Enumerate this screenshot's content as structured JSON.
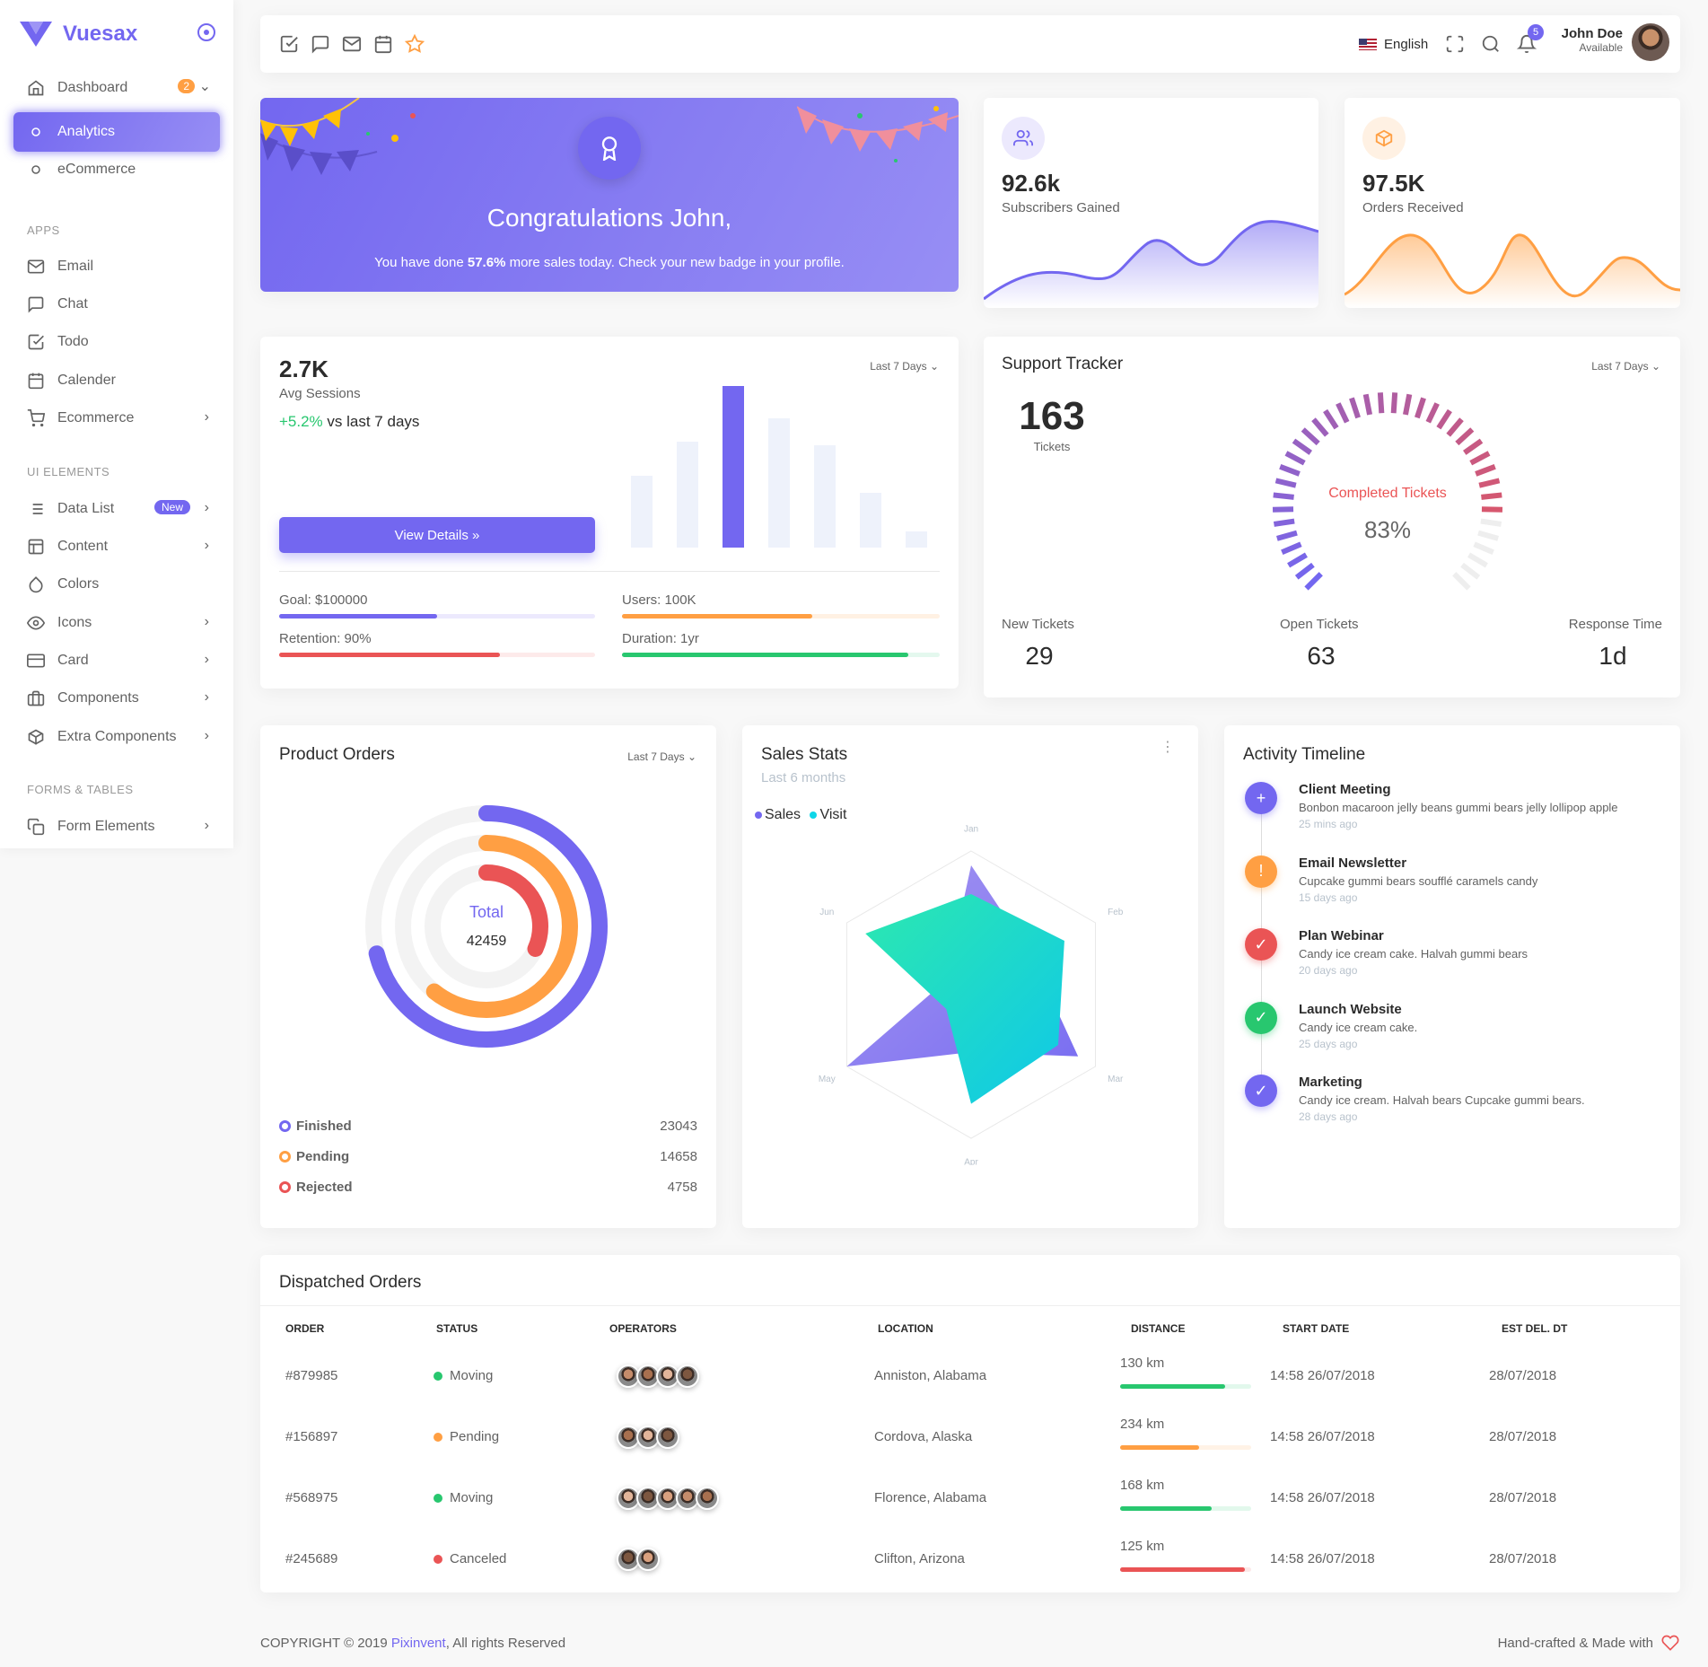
{
  "brand": {
    "name": "Vuesax"
  },
  "sidebar": {
    "dashboard": {
      "label": "Dashboard",
      "badge": "2"
    },
    "sub_items": [
      {
        "label": "Analytics"
      },
      {
        "label": "eCommerce"
      }
    ],
    "sections": {
      "apps": "APPS",
      "ui": "UI ELEMENTS",
      "forms": "FORMS & TABLES"
    },
    "apps": [
      {
        "label": "Email",
        "icon": "mail-icon"
      },
      {
        "label": "Chat",
        "icon": "chat-icon"
      },
      {
        "label": "Todo",
        "icon": "check-square-icon"
      },
      {
        "label": "Calender",
        "icon": "calendar-icon"
      },
      {
        "label": "Ecommerce",
        "icon": "cart-icon"
      }
    ],
    "ui": [
      {
        "label": "Data List",
        "icon": "list-icon",
        "badge": "New"
      },
      {
        "label": "Content",
        "icon": "layout-icon"
      },
      {
        "label": "Colors",
        "icon": "droplet-icon"
      },
      {
        "label": "Icons",
        "icon": "eye-icon"
      },
      {
        "label": "Card",
        "icon": "credit-card-icon"
      },
      {
        "label": "Components",
        "icon": "briefcase-icon"
      },
      {
        "label": "Extra Components",
        "icon": "box-icon"
      }
    ],
    "forms": [
      {
        "label": "Form Elements",
        "icon": "copy-icon"
      }
    ]
  },
  "topbar": {
    "language": "English",
    "notifications": "5",
    "user": {
      "name": "John Doe",
      "status": "Available"
    }
  },
  "congrats": {
    "title": "Congratulations John,",
    "text_before": "You have done ",
    "percent": "57.6%",
    "text_after": " more sales today. Check your new badge in your profile."
  },
  "subscribers": {
    "value": "92.6k",
    "label": "Subscribers Gained",
    "color": "#7367f0"
  },
  "orders_received": {
    "value": "97.5K",
    "label": "Orders Received",
    "color": "#ff9f43"
  },
  "sessions": {
    "value": "2.7K",
    "label": "Avg Sessions",
    "change": "+5.2%",
    "change_suffix": " vs last 7 days",
    "filter": "Last 7 Days",
    "button": "View Details »",
    "goals": [
      {
        "label": "Goal: $100000",
        "pct": 50,
        "color": "#7367f0"
      },
      {
        "label": "Users: 100K",
        "pct": 60,
        "color": "#ff9f43"
      },
      {
        "label": "Retention: 90%",
        "pct": 70,
        "color": "#ea5455"
      },
      {
        "label": "Duration: 1yr",
        "pct": 90,
        "color": "#28c76f"
      }
    ]
  },
  "support": {
    "title": "Support Tracker",
    "filter": "Last 7 Days",
    "tickets": "163",
    "tickets_label": "Tickets",
    "gauge_label": "Completed Tickets",
    "gauge_value": "83%",
    "gauge_pct": 83,
    "stats": [
      {
        "label": "New Tickets",
        "value": "29"
      },
      {
        "label": "Open Tickets",
        "value": "63"
      },
      {
        "label": "Response Time",
        "value": "1d"
      }
    ]
  },
  "product_orders": {
    "title": "Product Orders",
    "filter": "Last 7 Days",
    "total_label": "Total",
    "total": "42459",
    "items": [
      {
        "label": "Finished",
        "value": "23043",
        "color": "#7367f0"
      },
      {
        "label": "Pending",
        "value": "14658",
        "color": "#ff9f43"
      },
      {
        "label": "Rejected",
        "value": "4758",
        "color": "#ea5455"
      }
    ]
  },
  "sales_stats": {
    "title": "Sales Stats",
    "subtitle": "Last 6 months",
    "legend": [
      {
        "label": "Sales",
        "color": "#7367f0"
      },
      {
        "label": "Visit",
        "color": "#0fd6e8"
      }
    ]
  },
  "chart_data": {
    "type": "radar",
    "categories": [
      "Jan",
      "Feb",
      "Mar",
      "Apr",
      "May",
      "Jun"
    ],
    "series": [
      {
        "name": "Sales",
        "values": [
          90,
          50,
          86,
          40,
          100,
          20
        ]
      },
      {
        "name": "Visit",
        "values": [
          70,
          75,
          70,
          76,
          20,
          85
        ]
      }
    ]
  },
  "timeline": {
    "title": "Activity Timeline",
    "items": [
      {
        "title": "Client Meeting",
        "text": "Bonbon macaroon jelly beans gummi bears jelly lollipop apple",
        "time": "25 mins ago",
        "color": "#7367f0",
        "icon": "+"
      },
      {
        "title": "Email Newsletter",
        "text": "Cupcake gummi bears soufflé caramels candy",
        "time": "15 days ago",
        "color": "#ff9f43",
        "icon": "!"
      },
      {
        "title": "Plan Webinar",
        "text": "Candy ice cream cake. Halvah gummi bears",
        "time": "20 days ago",
        "color": "#ea5455",
        "icon": "✓"
      },
      {
        "title": "Launch Website",
        "text": "Candy ice cream cake.",
        "time": "25 days ago",
        "color": "#28c76f",
        "icon": "✓"
      },
      {
        "title": "Marketing",
        "text": "Candy ice cream. Halvah bears Cupcake gummi bears.",
        "time": "28 days ago",
        "color": "#7367f0",
        "icon": "✓"
      }
    ]
  },
  "orders_table": {
    "title": "Dispatched Orders",
    "headers": [
      "ORDER",
      "STATUS",
      "OPERATORS",
      "LOCATION",
      "DISTANCE",
      "START DATE",
      "EST DEL. DT"
    ],
    "rows": [
      {
        "order": "#879985",
        "status": "Moving",
        "status_color": "#28c76f",
        "operators": 4,
        "location": "Anniston, Alabama",
        "distance": "130 km",
        "progress": 80,
        "progress_color": "#28c76f",
        "start": "14:58 26/07/2018",
        "est": "28/07/2018"
      },
      {
        "order": "#156897",
        "status": "Pending",
        "status_color": "#ff9f43",
        "operators": 3,
        "location": "Cordova, Alaska",
        "distance": "234 km",
        "progress": 60,
        "progress_color": "#ff9f43",
        "start": "14:58 26/07/2018",
        "est": "28/07/2018"
      },
      {
        "order": "#568975",
        "status": "Moving",
        "status_color": "#28c76f",
        "operators": 5,
        "location": "Florence, Alabama",
        "distance": "168 km",
        "progress": 70,
        "progress_color": "#28c76f",
        "start": "14:58 26/07/2018",
        "est": "28/07/2018"
      },
      {
        "order": "#245689",
        "status": "Canceled",
        "status_color": "#ea5455",
        "operators": 2,
        "location": "Clifton, Arizona",
        "distance": "125 km",
        "progress": 95,
        "progress_color": "#ea5455",
        "start": "14:58 26/07/2018",
        "est": "28/07/2018"
      }
    ]
  },
  "footer": {
    "copyright_pre": "COPYRIGHT © 2019 ",
    "company": "Pixinvent",
    "copyright_post": ", All rights Reserved",
    "right": "Hand-crafted & Made with"
  }
}
